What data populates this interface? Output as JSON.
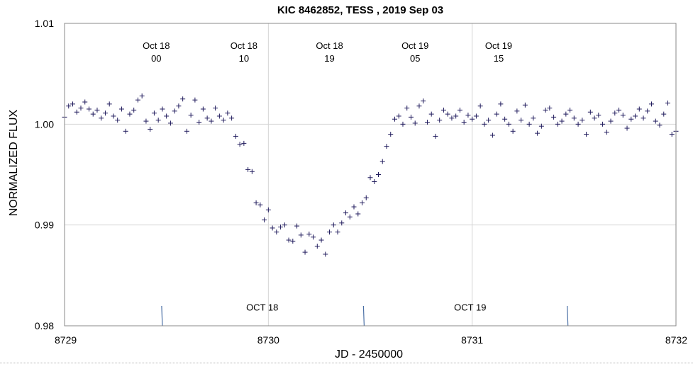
{
  "chart_data": {
    "type": "scatter",
    "title": "KIC 8462852, TESS , 2019 Sep 03",
    "xlabel": "JD - 2450000",
    "ylabel": "NORMALIZED FLUX",
    "xlim": [
      8729,
      8732
    ],
    "ylim": [
      0.98,
      1.01
    ],
    "x_ticks": [
      8729,
      8730,
      8731,
      8732
    ],
    "x_tick_labels": [
      "8729",
      "8730",
      "8731",
      "8732"
    ],
    "y_ticks": [
      0.98,
      0.99,
      1.0,
      1.01
    ],
    "y_tick_labels": [
      "0.98",
      "0.99",
      "1.00",
      "1.01"
    ],
    "grid": true,
    "marker": "+",
    "series_color": "#1f1a5c",
    "time_annotations": [
      {
        "x": 8729.45,
        "date": "Oct 18",
        "hour": "00"
      },
      {
        "x": 8729.88,
        "date": "Oct 18",
        "hour": "10"
      },
      {
        "x": 8730.3,
        "date": "Oct 18",
        "hour": "19"
      },
      {
        "x": 8730.72,
        "date": "Oct 19",
        "hour": "05"
      },
      {
        "x": 8731.13,
        "date": "Oct 19",
        "hour": "15"
      }
    ],
    "day_labels": [
      {
        "x": 8729.97,
        "y": 0.9815,
        "text": "OCT 18"
      },
      {
        "x": 8730.99,
        "y": 0.9815,
        "text": "OCT 19"
      }
    ],
    "day_markers": [
      8729.48,
      8730.47,
      8731.47
    ],
    "x": [
      8729.0,
      8729.02,
      8729.04,
      8729.06,
      8729.08,
      8729.1,
      8729.12,
      8729.14,
      8729.16,
      8729.18,
      8729.2,
      8729.22,
      8729.24,
      8729.26,
      8729.28,
      8729.3,
      8729.32,
      8729.34,
      8729.36,
      8729.38,
      8729.4,
      8729.42,
      8729.44,
      8729.46,
      8729.48,
      8729.5,
      8729.52,
      8729.54,
      8729.56,
      8729.58,
      8729.6,
      8729.62,
      8729.64,
      8729.66,
      8729.68,
      8729.7,
      8729.72,
      8729.74,
      8729.76,
      8729.78,
      8729.8,
      8729.82,
      8729.84,
      8729.86,
      8729.88,
      8729.9,
      8729.92,
      8729.94,
      8729.96,
      8729.98,
      8730.0,
      8730.02,
      8730.04,
      8730.06,
      8730.08,
      8730.1,
      8730.12,
      8730.14,
      8730.16,
      8730.18,
      8730.2,
      8730.22,
      8730.24,
      8730.26,
      8730.28,
      8730.3,
      8730.32,
      8730.34,
      8730.36,
      8730.38,
      8730.4,
      8730.42,
      8730.44,
      8730.46,
      8730.48,
      8730.5,
      8730.52,
      8730.54,
      8730.56,
      8730.58,
      8730.6,
      8730.62,
      8730.64,
      8730.66,
      8730.68,
      8730.7,
      8730.72,
      8730.74,
      8730.76,
      8730.78,
      8730.8,
      8730.82,
      8730.84,
      8730.86,
      8730.88,
      8730.9,
      8730.92,
      8730.94,
      8730.96,
      8730.98,
      8731.0,
      8731.02,
      8731.04,
      8731.06,
      8731.08,
      8731.1,
      8731.12,
      8731.14,
      8731.16,
      8731.18,
      8731.2,
      8731.22,
      8731.24,
      8731.26,
      8731.28,
      8731.3,
      8731.32,
      8731.34,
      8731.36,
      8731.38,
      8731.4,
      8731.42,
      8731.44,
      8731.46,
      8731.48,
      8731.5,
      8731.52,
      8731.54,
      8731.56,
      8731.58,
      8731.6,
      8731.62,
      8731.64,
      8731.66,
      8731.68,
      8731.7,
      8731.72,
      8731.74,
      8731.76,
      8731.78,
      8731.8,
      8731.82,
      8731.84,
      8731.86,
      8731.88,
      8731.9,
      8731.92,
      8731.94,
      8731.96,
      8731.98,
      8732.0
    ],
    "y": [
      1.0007,
      1.0018,
      1.002,
      1.0012,
      1.0016,
      1.0022,
      1.0015,
      1.001,
      1.0014,
      1.0006,
      1.0011,
      1.002,
      1.0008,
      1.0004,
      1.0015,
      0.9993,
      1.001,
      1.0014,
      1.0024,
      1.0028,
      1.0003,
      0.9995,
      1.0011,
      1.0004,
      1.0015,
      1.0008,
      1.0001,
      1.0013,
      1.0018,
      1.0025,
      0.9993,
      1.0009,
      1.0024,
      1.0002,
      1.0015,
      1.0006,
      1.0003,
      1.0016,
      1.0008,
      1.0004,
      1.0011,
      1.0006,
      0.9988,
      0.998,
      0.9981,
      0.9955,
      0.9953,
      0.9922,
      0.992,
      0.9905,
      0.9915,
      0.9897,
      0.9893,
      0.9898,
      0.99,
      0.9885,
      0.9884,
      0.9899,
      0.989,
      0.9873,
      0.9891,
      0.9888,
      0.9879,
      0.9885,
      0.9871,
      0.9893,
      0.99,
      0.9893,
      0.9902,
      0.9912,
      0.9908,
      0.9918,
      0.9911,
      0.9922,
      0.9927,
      0.9947,
      0.9943,
      0.995,
      0.9963,
      0.9978,
      0.999,
      1.0005,
      1.0008,
      1.0,
      1.0016,
      1.0007,
      1.0001,
      1.0018,
      1.0023,
      1.0002,
      1.001,
      0.9988,
      1.0004,
      1.0014,
      1.001,
      1.0006,
      1.0008,
      1.0014,
      1.0002,
      1.0009,
      1.0005,
      1.0008,
      1.0018,
      1.0,
      1.0004,
      0.9989,
      1.001,
      1.002,
      1.0005,
      1.0,
      0.9993,
      1.0013,
      1.0004,
      1.0019,
      1.0,
      1.0006,
      0.9991,
      0.9998,
      1.0014,
      1.0016,
      1.0007,
      1.0,
      1.0003,
      1.001,
      1.0014,
      1.0006,
      1.0,
      1.0004,
      0.999,
      1.0012,
      1.0006,
      1.0009,
      1.0,
      0.9992,
      1.0003,
      1.0011,
      1.0014,
      1.0009,
      0.9996,
      1.0005,
      1.0008,
      1.0015,
      1.0006,
      1.0013,
      1.002,
      1.0003,
      0.9999,
      1.001,
      1.0021,
      0.999,
      0.9993
    ]
  }
}
